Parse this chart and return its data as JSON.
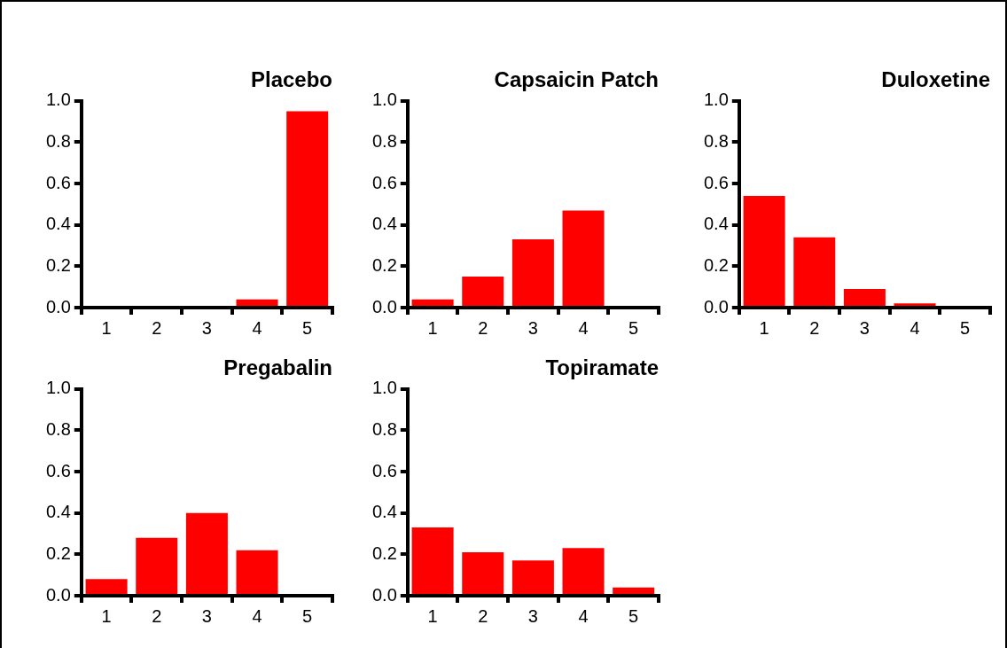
{
  "chart_data": [
    {
      "type": "bar",
      "title": "Placebo",
      "categories": [
        "1",
        "2",
        "3",
        "4",
        "5"
      ],
      "values": [
        0,
        0,
        0,
        0.04,
        0.95
      ],
      "color": "#ff0000",
      "ylim": [
        0,
        1
      ],
      "yticks": [
        {
          "value": 0,
          "label": "0.0"
        },
        {
          "value": 0.2,
          "label": "0.2"
        },
        {
          "value": 0.4,
          "label": "0.4"
        },
        {
          "value": 0.6,
          "label": "0.6"
        },
        {
          "value": 0.8,
          "label": "0.8"
        },
        {
          "value": 1,
          "label": "1.0"
        }
      ]
    },
    {
      "type": "bar",
      "title": "Capsaicin Patch",
      "categories": [
        "1",
        "2",
        "3",
        "4",
        "5"
      ],
      "values": [
        0.04,
        0.15,
        0.33,
        0.47,
        0
      ],
      "color": "#ff0000",
      "ylim": [
        0,
        1
      ],
      "yticks": [
        {
          "value": 0,
          "label": "0.0"
        },
        {
          "value": 0.2,
          "label": "0.2"
        },
        {
          "value": 0.4,
          "label": "0.4"
        },
        {
          "value": 0.6,
          "label": "0.6"
        },
        {
          "value": 0.8,
          "label": "0.8"
        },
        {
          "value": 1,
          "label": "1.0"
        }
      ]
    },
    {
      "type": "bar",
      "title": "Duloxetine",
      "categories": [
        "1",
        "2",
        "3",
        "4",
        "5"
      ],
      "values": [
        0.54,
        0.34,
        0.09,
        0.02,
        0
      ],
      "color": "#ff0000",
      "ylim": [
        0,
        1
      ],
      "yticks": [
        {
          "value": 0,
          "label": "0.0"
        },
        {
          "value": 0.2,
          "label": "0.2"
        },
        {
          "value": 0.4,
          "label": "0.4"
        },
        {
          "value": 0.6,
          "label": "0.6"
        },
        {
          "value": 0.8,
          "label": "0.8"
        },
        {
          "value": 1,
          "label": "1.0"
        }
      ]
    },
    {
      "type": "bar",
      "title": "Pregabalin",
      "categories": [
        "1",
        "2",
        "3",
        "4",
        "5"
      ],
      "values": [
        0.08,
        0.28,
        0.4,
        0.22,
        0
      ],
      "color": "#ff0000",
      "ylim": [
        0,
        1
      ],
      "yticks": [
        {
          "value": 0,
          "label": "0.0"
        },
        {
          "value": 0.2,
          "label": "0.2"
        },
        {
          "value": 0.4,
          "label": "0.4"
        },
        {
          "value": 0.6,
          "label": "0.6"
        },
        {
          "value": 0.8,
          "label": "0.8"
        },
        {
          "value": 1,
          "label": "1.0"
        }
      ]
    },
    {
      "type": "bar",
      "title": "Topiramate",
      "categories": [
        "1",
        "2",
        "3",
        "4",
        "5"
      ],
      "values": [
        0.33,
        0.21,
        0.17,
        0.23,
        0.04
      ],
      "color": "#ff0000",
      "ylim": [
        0,
        1
      ],
      "yticks": [
        {
          "value": 0,
          "label": "0.0"
        },
        {
          "value": 0.2,
          "label": "0.2"
        },
        {
          "value": 0.4,
          "label": "0.4"
        },
        {
          "value": 0.6,
          "label": "0.6"
        },
        {
          "value": 0.8,
          "label": "0.8"
        },
        {
          "value": 1,
          "label": "1.0"
        }
      ]
    }
  ]
}
